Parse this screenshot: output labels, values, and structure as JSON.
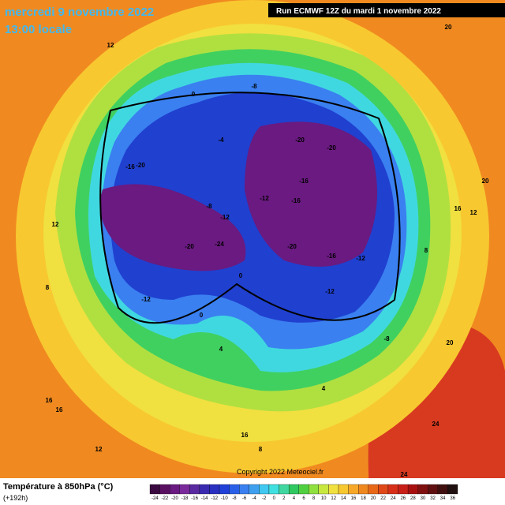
{
  "header": {
    "date": "mercredi 9 novembre 2022",
    "time": "13:00 locale",
    "run": "Run ECMWF 12Z du mardi 1 novembre 2022"
  },
  "footer": {
    "title": "Température à 850hPa (°C)",
    "lead": "(+192h)",
    "copyright": "Copyright 2022 Meteociel.fr"
  },
  "legend": {
    "ticks": [
      -24,
      -22,
      -20,
      -18,
      -16,
      -14,
      -12,
      -10,
      -8,
      -6,
      -4,
      -2,
      0,
      2,
      4,
      6,
      8,
      10,
      12,
      14,
      16,
      18,
      20,
      22,
      24,
      26,
      28,
      30,
      32,
      34,
      36
    ],
    "colors": [
      "#3a0a40",
      "#5a1060",
      "#6a1a80",
      "#7a2a9a",
      "#5a2aa0",
      "#3a2ab0",
      "#2a30c0",
      "#2040d8",
      "#2a60e8",
      "#3a80f0",
      "#40a0f0",
      "#40c8f0",
      "#40e0e0",
      "#40d8a0",
      "#30c860",
      "#50d040",
      "#90e040",
      "#c8e840",
      "#f0e040",
      "#f8c830",
      "#f8a828",
      "#f08820",
      "#e86818",
      "#e04818",
      "#d83018",
      "#c82018",
      "#a81010",
      "#801010",
      "#601010",
      "#401010",
      "#201010"
    ]
  },
  "map_labels": [
    -20,
    -20,
    -16,
    -16,
    -12,
    -12,
    -8,
    -8,
    -20,
    -24,
    -20,
    -16,
    -12,
    -12,
    -16,
    -20,
    -12,
    -8,
    -4,
    0,
    0,
    0,
    4,
    4,
    8,
    8,
    12,
    12,
    12,
    16,
    16,
    16,
    20,
    20,
    20,
    24,
    24,
    12,
    8,
    16
  ]
}
